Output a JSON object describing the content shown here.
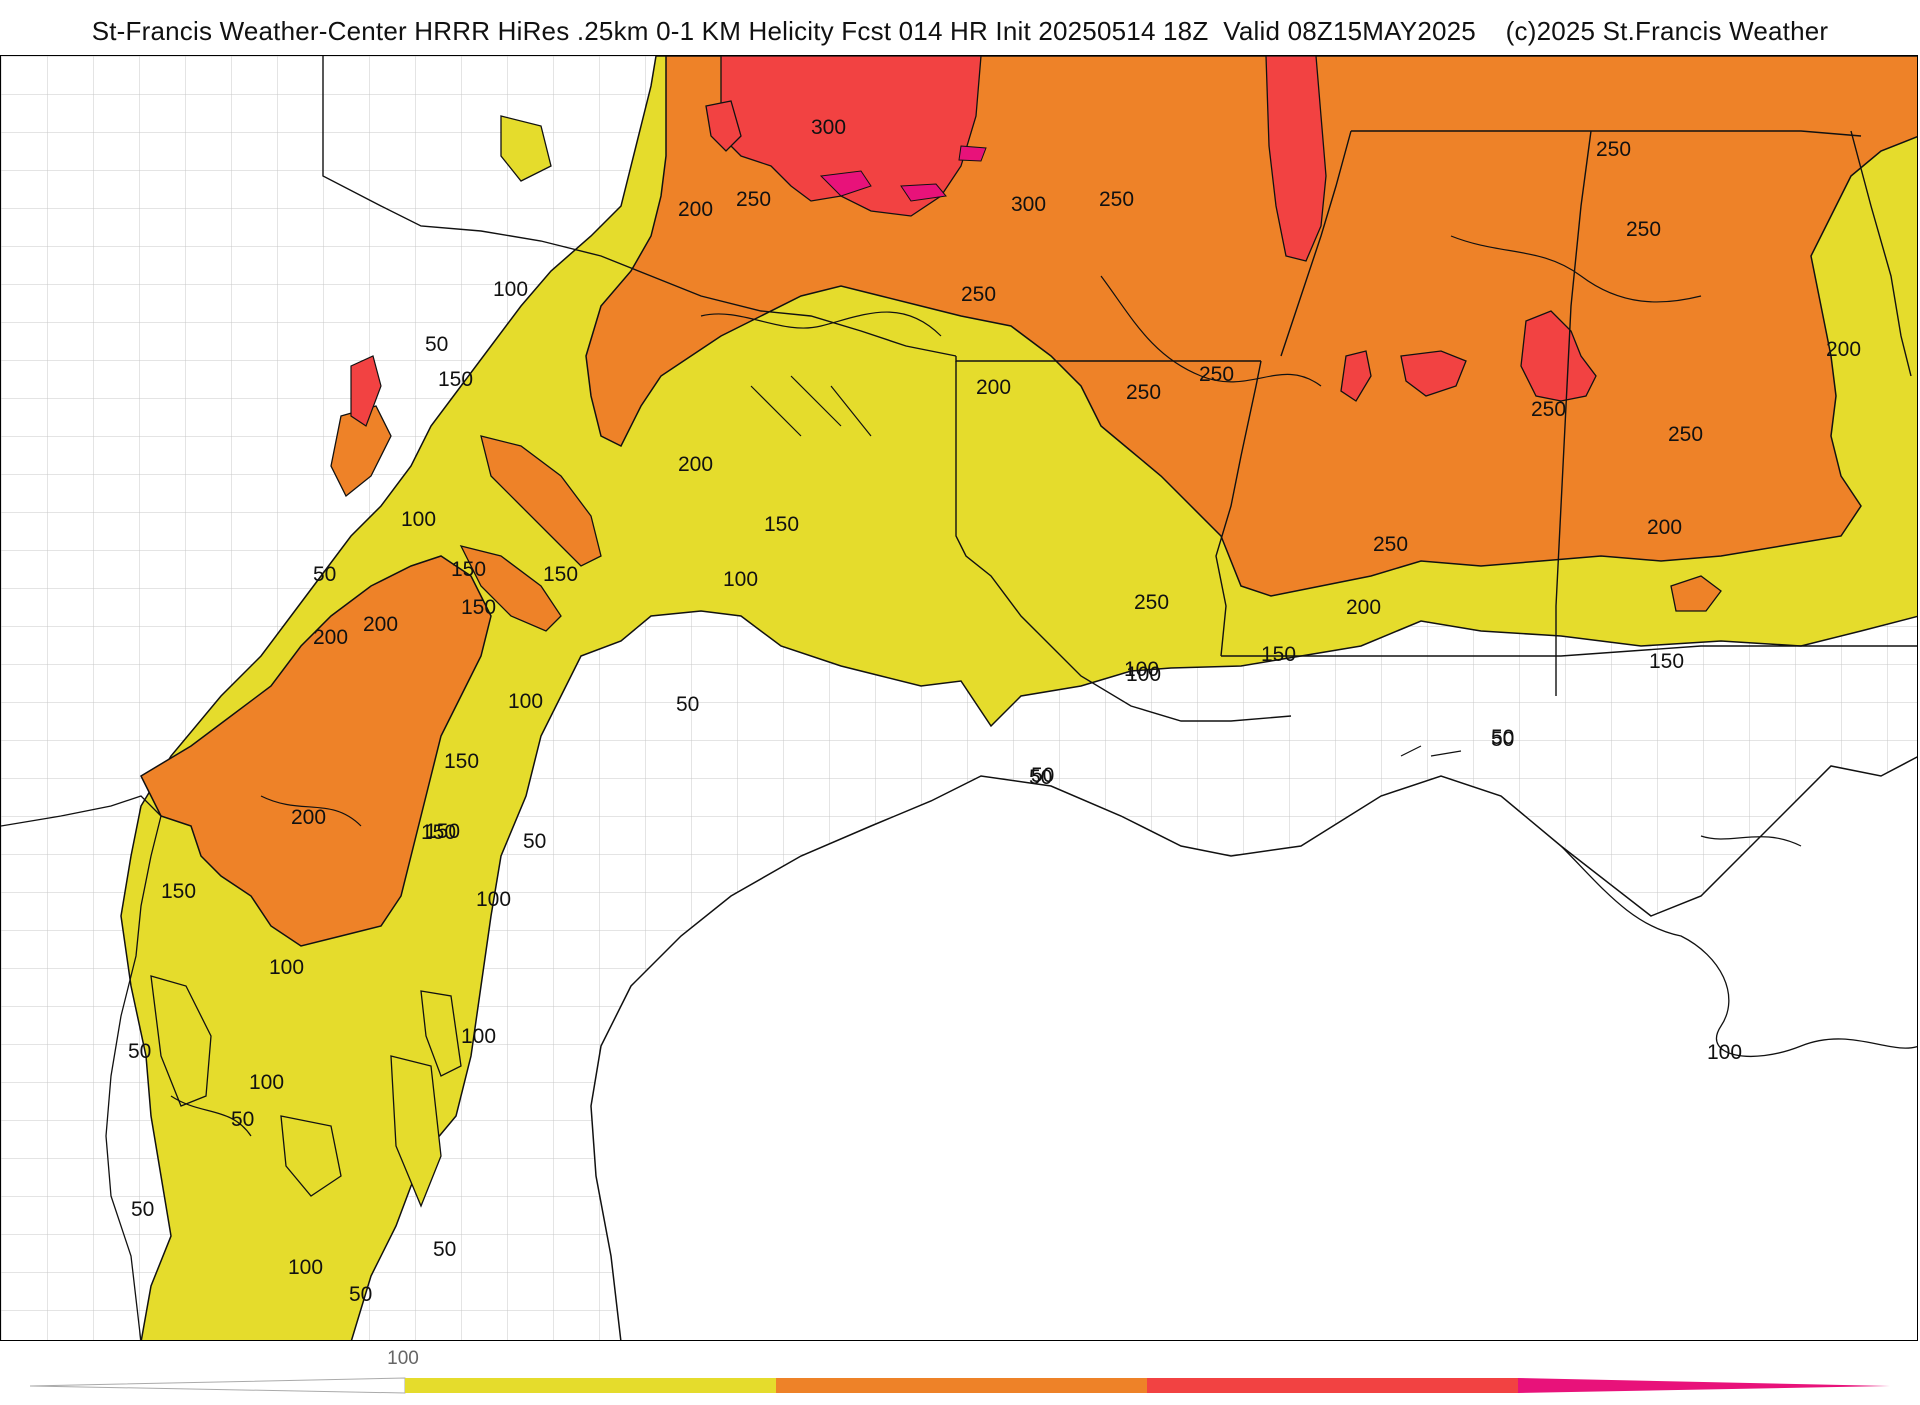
{
  "header": {
    "title": "St-Francis Weather-Center HRRR HiRes .25km 0-1 KM Helicity Fcst 014 HR Init 20250514 18Z  Valid 08Z15MAY2025    (c)2025 St.Francis Weather"
  },
  "legend": {
    "tick_label": "100",
    "bands": [
      {
        "from": 0,
        "to": 100,
        "color": "#ffffff"
      },
      {
        "from": 100,
        "to": 200,
        "color": "#e5dc2c"
      },
      {
        "from": 200,
        "to": 300,
        "color": "#ee8228"
      },
      {
        "from": 300,
        "to": 400,
        "color": "#f24242"
      },
      {
        "from": 400,
        "to": 500,
        "color": "#e8127a"
      }
    ]
  },
  "colors": {
    "yellow": "#e5dc2c",
    "orange": "#ee8228",
    "red": "#f24242",
    "magenta": "#e8127a",
    "border": "#111111",
    "county": "#c8c8c8"
  },
  "contour_labels": [
    "300",
    "300",
    "250",
    "250",
    "250",
    "250",
    "250",
    "200",
    "250",
    "250",
    "200",
    "250",
    "250",
    "200",
    "250",
    "200",
    "100",
    "50",
    "150",
    "200",
    "150",
    "100",
    "50",
    "150",
    "150",
    "100",
    "150",
    "200",
    "200",
    "150",
    "100",
    "50",
    "250",
    "200",
    "150",
    "150",
    "150",
    "100",
    "100",
    "50",
    "50",
    "200",
    "150",
    "100",
    "50",
    "150",
    "100",
    "100",
    "50",
    "100",
    "50",
    "100",
    "50",
    "50",
    "50",
    "100",
    "50",
    "50"
  ]
}
